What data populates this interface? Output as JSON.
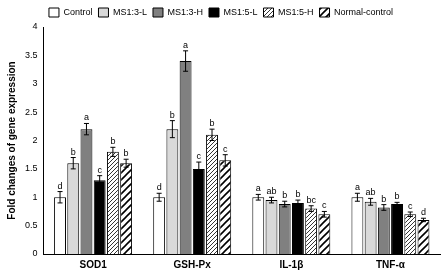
{
  "chart_data": {
    "type": "bar",
    "y_label": "Fold changes of gene expression",
    "categories": [
      "SOD1",
      "GSH-Px",
      "IL-1β",
      "TNF-α"
    ],
    "ylim": [
      0,
      4
    ],
    "yticks": [
      0,
      0.5,
      1,
      1.5,
      2,
      2.5,
      3,
      3.5,
      4
    ],
    "grid": false,
    "legend": "top",
    "series": [
      {
        "name": "Control",
        "color": "#ffffff",
        "values": [
          1.0,
          1.0,
          1.0,
          1.0
        ],
        "errors": [
          0.1,
          0.07,
          0.05,
          0.07
        ],
        "significance": [
          "d",
          "d",
          "a",
          "a"
        ]
      },
      {
        "name": "MS1:3-L",
        "color": "#d9d9d9",
        "values": [
          1.6,
          2.2,
          0.95,
          0.92
        ],
        "errors": [
          0.1,
          0.15,
          0.05,
          0.06
        ],
        "significance": [
          "b",
          "b",
          "ab",
          "ab"
        ]
      },
      {
        "name": "MS1:3-H",
        "color": "#808080",
        "values": [
          2.2,
          3.4,
          0.88,
          0.82
        ],
        "errors": [
          0.1,
          0.18,
          0.05,
          0.05
        ],
        "significance": [
          "a",
          "a",
          "b",
          "b"
        ]
      },
      {
        "name": "MS1:5-L",
        "color": "#000000",
        "values": [
          1.3,
          1.5,
          0.9,
          0.88
        ],
        "errors": [
          0.08,
          0.12,
          0.05,
          0.03
        ],
        "significance": [
          "c",
          "c",
          "b",
          "b"
        ]
      },
      {
        "name": "MS1:5-H",
        "color": "#000000",
        "marker": "hatch",
        "values": [
          1.8,
          2.1,
          0.8,
          0.7
        ],
        "errors": [
          0.08,
          0.1,
          0.05,
          0.04
        ],
        "significance": [
          "b",
          "b",
          "bc",
          "c"
        ]
      },
      {
        "name": "Normal-control",
        "color": "#000000",
        "marker": "wide_hatch",
        "values": [
          1.6,
          1.65,
          0.7,
          0.6
        ],
        "errors": [
          0.07,
          0.1,
          0.05,
          0.03
        ],
        "significance": [
          "b",
          "c",
          "c",
          "d"
        ]
      }
    ]
  }
}
